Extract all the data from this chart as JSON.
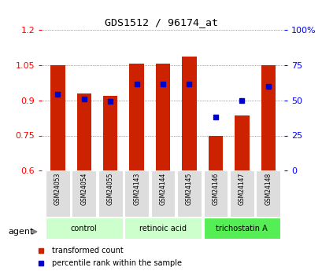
{
  "title": "GDS1512 / 96174_at",
  "samples": [
    "GSM24053",
    "GSM24054",
    "GSM24055",
    "GSM24143",
    "GSM24144",
    "GSM24145",
    "GSM24146",
    "GSM24147",
    "GSM24148"
  ],
  "bar_values": [
    1.05,
    0.93,
    0.92,
    1.055,
    1.055,
    1.085,
    0.75,
    0.835,
    1.05
  ],
  "percentile_values": [
    0.925,
    0.905,
    0.895,
    0.97,
    0.97,
    0.968,
    0.828,
    0.898,
    0.958
  ],
  "bar_color": "#cc2200",
  "dot_color": "#0000cc",
  "y_min": 0.6,
  "y_max": 1.2,
  "y_ticks": [
    0.6,
    0.75,
    0.9,
    1.05,
    1.2
  ],
  "y_tick_labels": [
    "0.6",
    "0.75",
    "0.9",
    "1.05",
    "1.2"
  ],
  "y2_ticks": [
    0,
    25,
    50,
    75,
    100
  ],
  "y2_tick_labels": [
    "0",
    "25",
    "50",
    "75",
    "100%"
  ],
  "group_ranges": [
    [
      0,
      2,
      "control",
      "#ccffcc"
    ],
    [
      3,
      5,
      "retinoic acid",
      "#ccffcc"
    ],
    [
      6,
      8,
      "trichostatin A",
      "#55ee55"
    ]
  ],
  "agent_label": "agent",
  "legend": [
    "transformed count",
    "percentile rank within the sample"
  ],
  "grid_color": "#555555",
  "bar_width": 0.55
}
